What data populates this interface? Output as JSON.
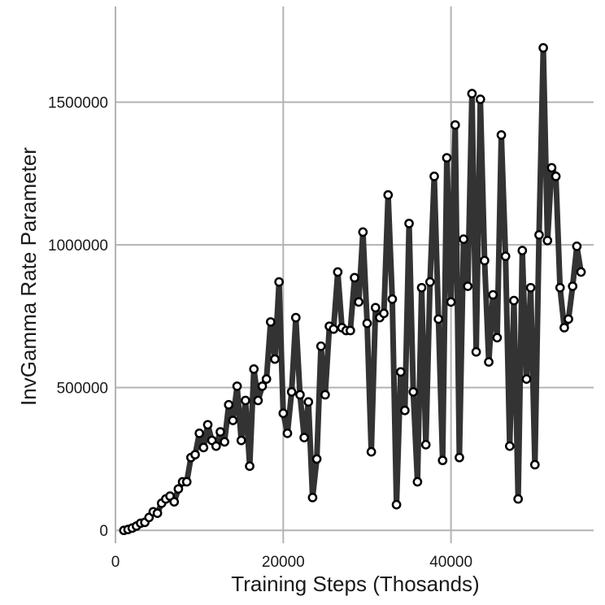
{
  "chart_data": {
    "type": "line",
    "title": "",
    "xlabel": "Training Steps (Thosands)",
    "ylabel": "InvGamma Rate Parameter",
    "xlim": [
      0,
      57000
    ],
    "ylim": [
      -45000,
      1835000
    ],
    "xticks": [
      0,
      20000,
      40000
    ],
    "yticks": [
      0,
      500000,
      1000000,
      1500000
    ],
    "xtick_labels": [
      "0",
      "20000",
      "40000"
    ],
    "ytick_labels": [
      "0",
      "500000",
      "1000000",
      "1500000"
    ],
    "grid": true,
    "legend": "none",
    "line_color": "#333333",
    "marker": "open-circle",
    "x": [
      1000,
      1500,
      2000,
      2500,
      3000,
      3500,
      4000,
      4500,
      5000,
      5500,
      6000,
      6500,
      7000,
      7500,
      8000,
      8500,
      9000,
      9500,
      10000,
      10500,
      11000,
      11500,
      12000,
      12500,
      13000,
      13500,
      14000,
      14500,
      15000,
      15500,
      16000,
      16500,
      17000,
      17500,
      18000,
      18500,
      19000,
      19500,
      20000,
      20500,
      21000,
      21500,
      22000,
      22500,
      23000,
      23500,
      24000,
      24500,
      25000,
      25500,
      26000,
      26500,
      27000,
      27500,
      28000,
      28500,
      29000,
      29500,
      30000,
      30500,
      31000,
      31500,
      32000,
      32500,
      33000,
      33500,
      34000,
      34500,
      35000,
      35500,
      36000,
      36500,
      37000,
      37500,
      38000,
      38500,
      39000,
      39500,
      40000,
      40500,
      41000,
      41500,
      42000,
      42500,
      43000,
      43500,
      44000,
      44500,
      45000,
      45500,
      46000,
      46500,
      47000,
      47500,
      48000,
      48500,
      49000,
      49500,
      50000,
      50500,
      51000,
      51500,
      52000,
      52500,
      53000,
      53500,
      54000,
      54500,
      55000,
      55500
    ],
    "y": [
      0,
      3000,
      8000,
      15000,
      25000,
      28000,
      45000,
      65000,
      60000,
      95000,
      110000,
      120000,
      100000,
      145000,
      170000,
      170000,
      255000,
      265000,
      340000,
      290000,
      370000,
      315000,
      295000,
      345000,
      310000,
      440000,
      385000,
      505000,
      315000,
      455000,
      225000,
      565000,
      455000,
      505000,
      530000,
      730000,
      600000,
      870000,
      410000,
      340000,
      485000,
      745000,
      475000,
      325000,
      450000,
      115000,
      250000,
      645000,
      475000,
      715000,
      705000,
      905000,
      710000,
      700000,
      700000,
      885000,
      800000,
      1045000,
      725000,
      275000,
      780000,
      745000,
      760000,
      1175000,
      810000,
      90000,
      555000,
      420000,
      1075000,
      485000,
      170000,
      850000,
      300000,
      870000,
      1240000,
      740000,
      245000,
      1305000,
      800000,
      1420000,
      255000,
      1020000,
      855000,
      1530000,
      625000,
      1510000,
      945000,
      590000,
      825000,
      675000,
      1385000,
      960000,
      295000,
      805000,
      110000,
      980000,
      530000,
      850000,
      230000,
      1035000,
      1690000,
      1015000,
      1270000,
      1240000,
      850000,
      710000,
      740000,
      855000,
      995000,
      905000
    ]
  }
}
